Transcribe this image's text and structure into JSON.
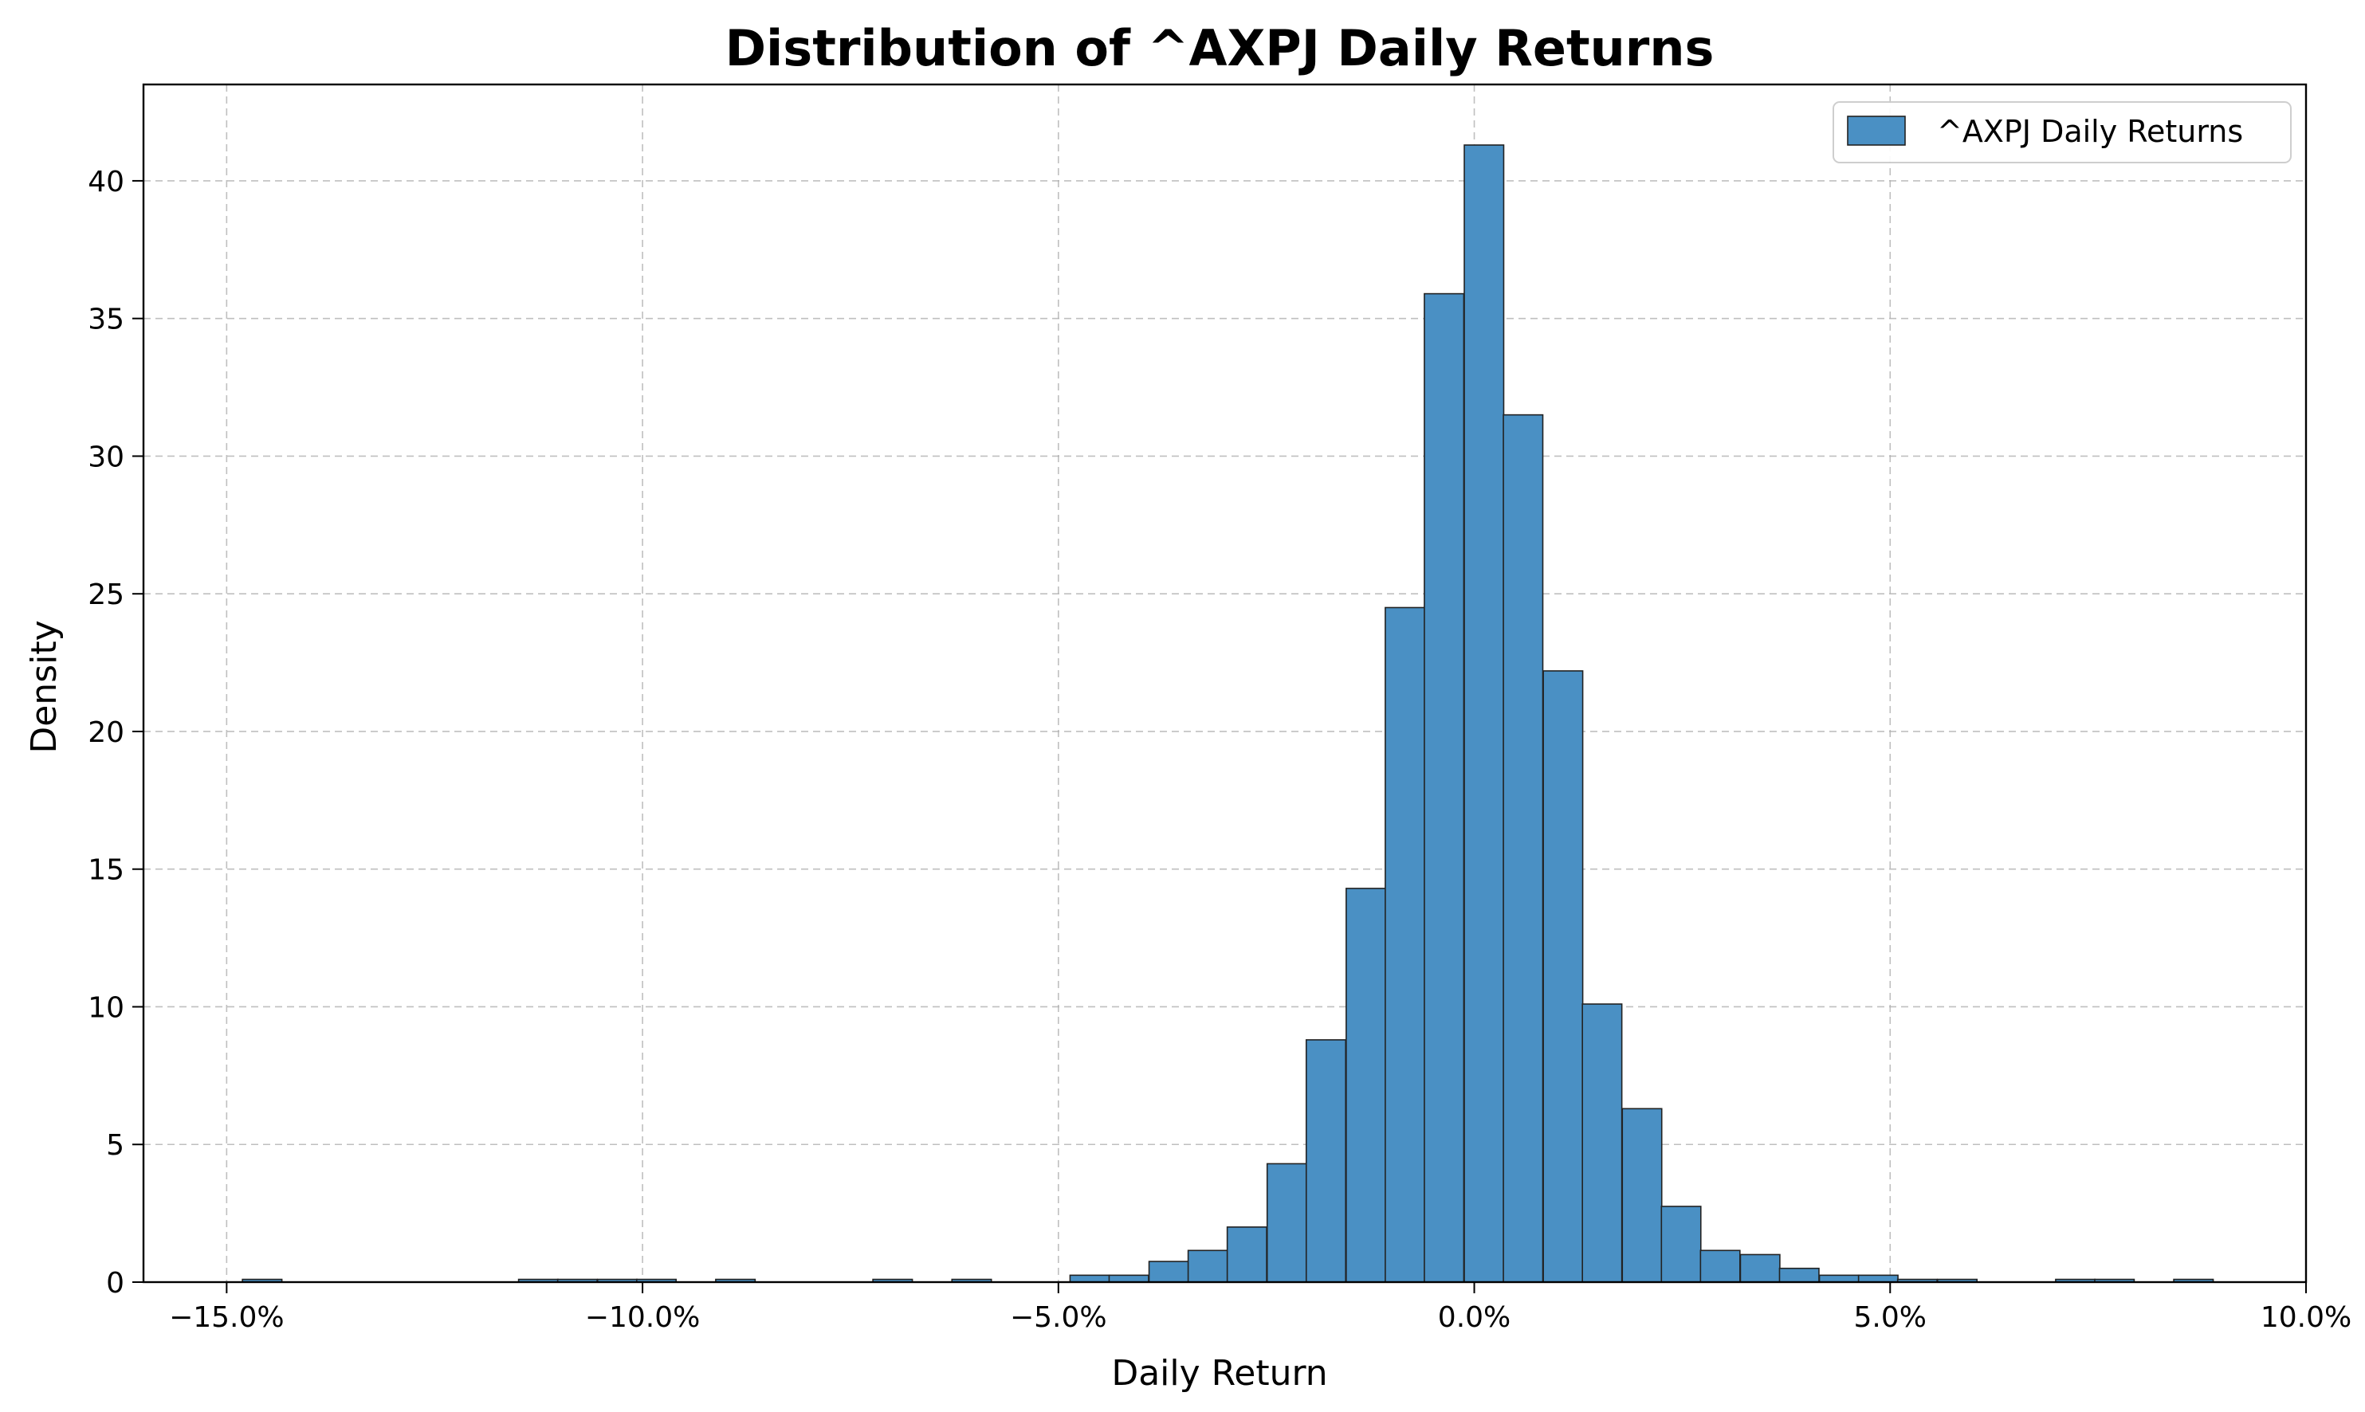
{
  "chart_data": {
    "type": "bar",
    "title": "Distribution of ^AXPJ Daily Returns",
    "xlabel": "Daily Return",
    "ylabel": "Density",
    "xlim": [
      -0.16,
      0.1
    ],
    "ylim": [
      0,
      43.5
    ],
    "x_ticks": [
      -0.15,
      -0.1,
      -0.05,
      0.0,
      0.05,
      0.1
    ],
    "x_tick_labels": [
      "−15.0%",
      "−10.0%",
      "−5.0%",
      "0.0%",
      "5.0%",
      "10.0%"
    ],
    "y_ticks": [
      0,
      5,
      10,
      15,
      20,
      25,
      30,
      35,
      40
    ],
    "y_tick_labels": [
      "0",
      "5",
      "10",
      "15",
      "20",
      "25",
      "30",
      "35",
      "40"
    ],
    "grid": true,
    "legend": {
      "position": "top-right",
      "entries": [
        "^AXPJ Daily Returns"
      ]
    },
    "series": [
      {
        "name": "^AXPJ Daily Returns",
        "color": "#4a90c4",
        "bin_width": 0.00474,
        "bin_starts": [
          -0.1481,
          -0.1149,
          -0.1102,
          -0.1054,
          -0.1007,
          -0.0912,
          -0.0723,
          -0.0628,
          -0.0486,
          -0.0439,
          -0.0391,
          -0.0344,
          -0.0297,
          -0.0249,
          -0.0202,
          -0.0154,
          -0.0107,
          -0.006,
          -0.0012,
          0.0035,
          0.0083,
          0.013,
          0.0178,
          0.0225,
          0.0272,
          0.032,
          0.0367,
          0.0415,
          0.0462,
          0.0509,
          0.0557,
          0.0699,
          0.0746,
          0.0841
        ],
        "values": [
          0.1,
          0.1,
          0.1,
          0.1,
          0.1,
          0.1,
          0.1,
          0.1,
          0.25,
          0.25,
          0.75,
          1.15,
          2.0,
          4.3,
          8.8,
          14.3,
          24.5,
          35.9,
          41.3,
          31.5,
          22.2,
          10.1,
          6.3,
          2.75,
          1.15,
          1.0,
          0.5,
          0.25,
          0.25,
          0.1,
          0.1,
          0.1,
          0.1,
          0.1
        ]
      }
    ]
  }
}
